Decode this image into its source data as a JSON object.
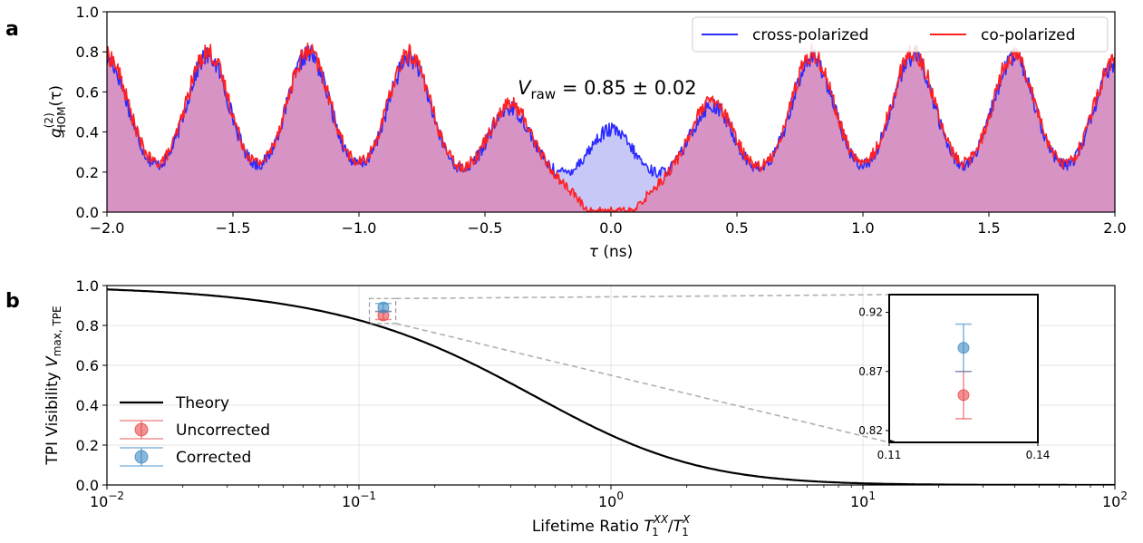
{
  "chart_data": [
    {
      "panel_label": "a",
      "type": "line",
      "xlabel_main": "τ",
      "xlabel_unit": " (ns)",
      "ylabel_main": "g",
      "ylabel_sup": "(2)",
      "ylabel_sub": "HOM",
      "ylabel_arg": "(τ)",
      "xlim": [
        -2.0,
        2.0
      ],
      "ylim": [
        0.0,
        1.0
      ],
      "xticks": [
        "−2.0",
        "−1.5",
        "−1.0",
        "−0.5",
        "0.0",
        "0.5",
        "1.0",
        "1.5",
        "2.0"
      ],
      "xtick_values": [
        -2.0,
        -1.5,
        -1.0,
        -0.5,
        0.0,
        0.5,
        1.0,
        1.5,
        2.0
      ],
      "yticks": [
        "0.0",
        "0.2",
        "0.4",
        "0.6",
        "0.8",
        "1.0"
      ],
      "ytick_values": [
        0.0,
        0.2,
        0.4,
        0.6,
        0.8,
        1.0
      ],
      "legend_position": "top-right",
      "filled": true,
      "series": [
        {
          "name": "cross-polarized",
          "color": "#2b2bff",
          "fill": "#c8c8f8",
          "peak_centers": [
            -2.0,
            -1.6,
            -1.2,
            -0.8,
            -0.4,
            0.0,
            0.4,
            0.8,
            1.2,
            1.6,
            2.0
          ],
          "peak_heights": [
            0.76,
            0.78,
            0.79,
            0.77,
            0.52,
            0.41,
            0.53,
            0.77,
            0.78,
            0.77,
            0.73
          ],
          "baseline": 0.16
        },
        {
          "name": "co-polarized",
          "color": "#ff2020",
          "fill": "#d88aba",
          "peak_centers": [
            -2.0,
            -1.6,
            -1.2,
            -0.8,
            -0.4,
            0.0,
            0.4,
            0.8,
            1.2,
            1.6,
            2.0
          ],
          "peak_heights": [
            0.78,
            0.8,
            0.8,
            0.79,
            0.54,
            0.03,
            0.55,
            0.79,
            0.8,
            0.79,
            0.75
          ],
          "baseline": 0.17
        }
      ],
      "annotation": {
        "symbol": "V",
        "subscript": "raw",
        "text": " = 0.85 ± 0.02",
        "x": -0.37,
        "y": 0.62
      }
    },
    {
      "panel_label": "b",
      "type": "line",
      "xscale": "log",
      "xlabel_prefix": "Lifetime Ratio ",
      "xlabel_num": "T",
      "xlabel_num_sub": "1",
      "xlabel_num_sup": "XX",
      "xlabel_slash": "/",
      "xlabel_den": "T",
      "xlabel_den_sub": "1",
      "xlabel_den_sup": "X",
      "ylabel_prefix": "TPI Visibility ",
      "ylabel_sym": "V",
      "ylabel_sub": "max, TPE",
      "xlim": [
        0.01,
        100
      ],
      "ylim": [
        0.0,
        1.0
      ],
      "xtick_values": [
        0.01,
        0.1,
        1,
        10,
        100
      ],
      "xtick_base": "10",
      "xtick_exps": [
        "−2",
        "−1",
        "0",
        "1",
        "2"
      ],
      "yticks": [
        "0.0",
        "0.2",
        "0.4",
        "0.6",
        "0.8",
        "1.0"
      ],
      "ytick_values": [
        0.0,
        0.2,
        0.4,
        0.6,
        0.8,
        1.0
      ],
      "grid": true,
      "legend_position": "lower-left",
      "theory": {
        "name": "Theory",
        "color": "#000000",
        "formula": "1/(1+r)^2"
      },
      "points": [
        {
          "name": "Uncorrected",
          "x": 0.125,
          "y": 0.85,
          "err": 0.02,
          "color": "#e8474a"
        },
        {
          "name": "Corrected",
          "x": 0.125,
          "y": 0.89,
          "err": 0.02,
          "color": "#3d8ac4"
        }
      ],
      "inset": {
        "xlim": [
          0.11,
          0.14
        ],
        "ylim": [
          0.81,
          0.935
        ],
        "xticks": [
          "0.11",
          "0.14"
        ],
        "xtick_values": [
          0.11,
          0.14
        ],
        "yticks": [
          "0.82",
          "0.87",
          "0.92"
        ],
        "ytick_values": [
          0.82,
          0.87,
          0.92
        ]
      }
    }
  ]
}
